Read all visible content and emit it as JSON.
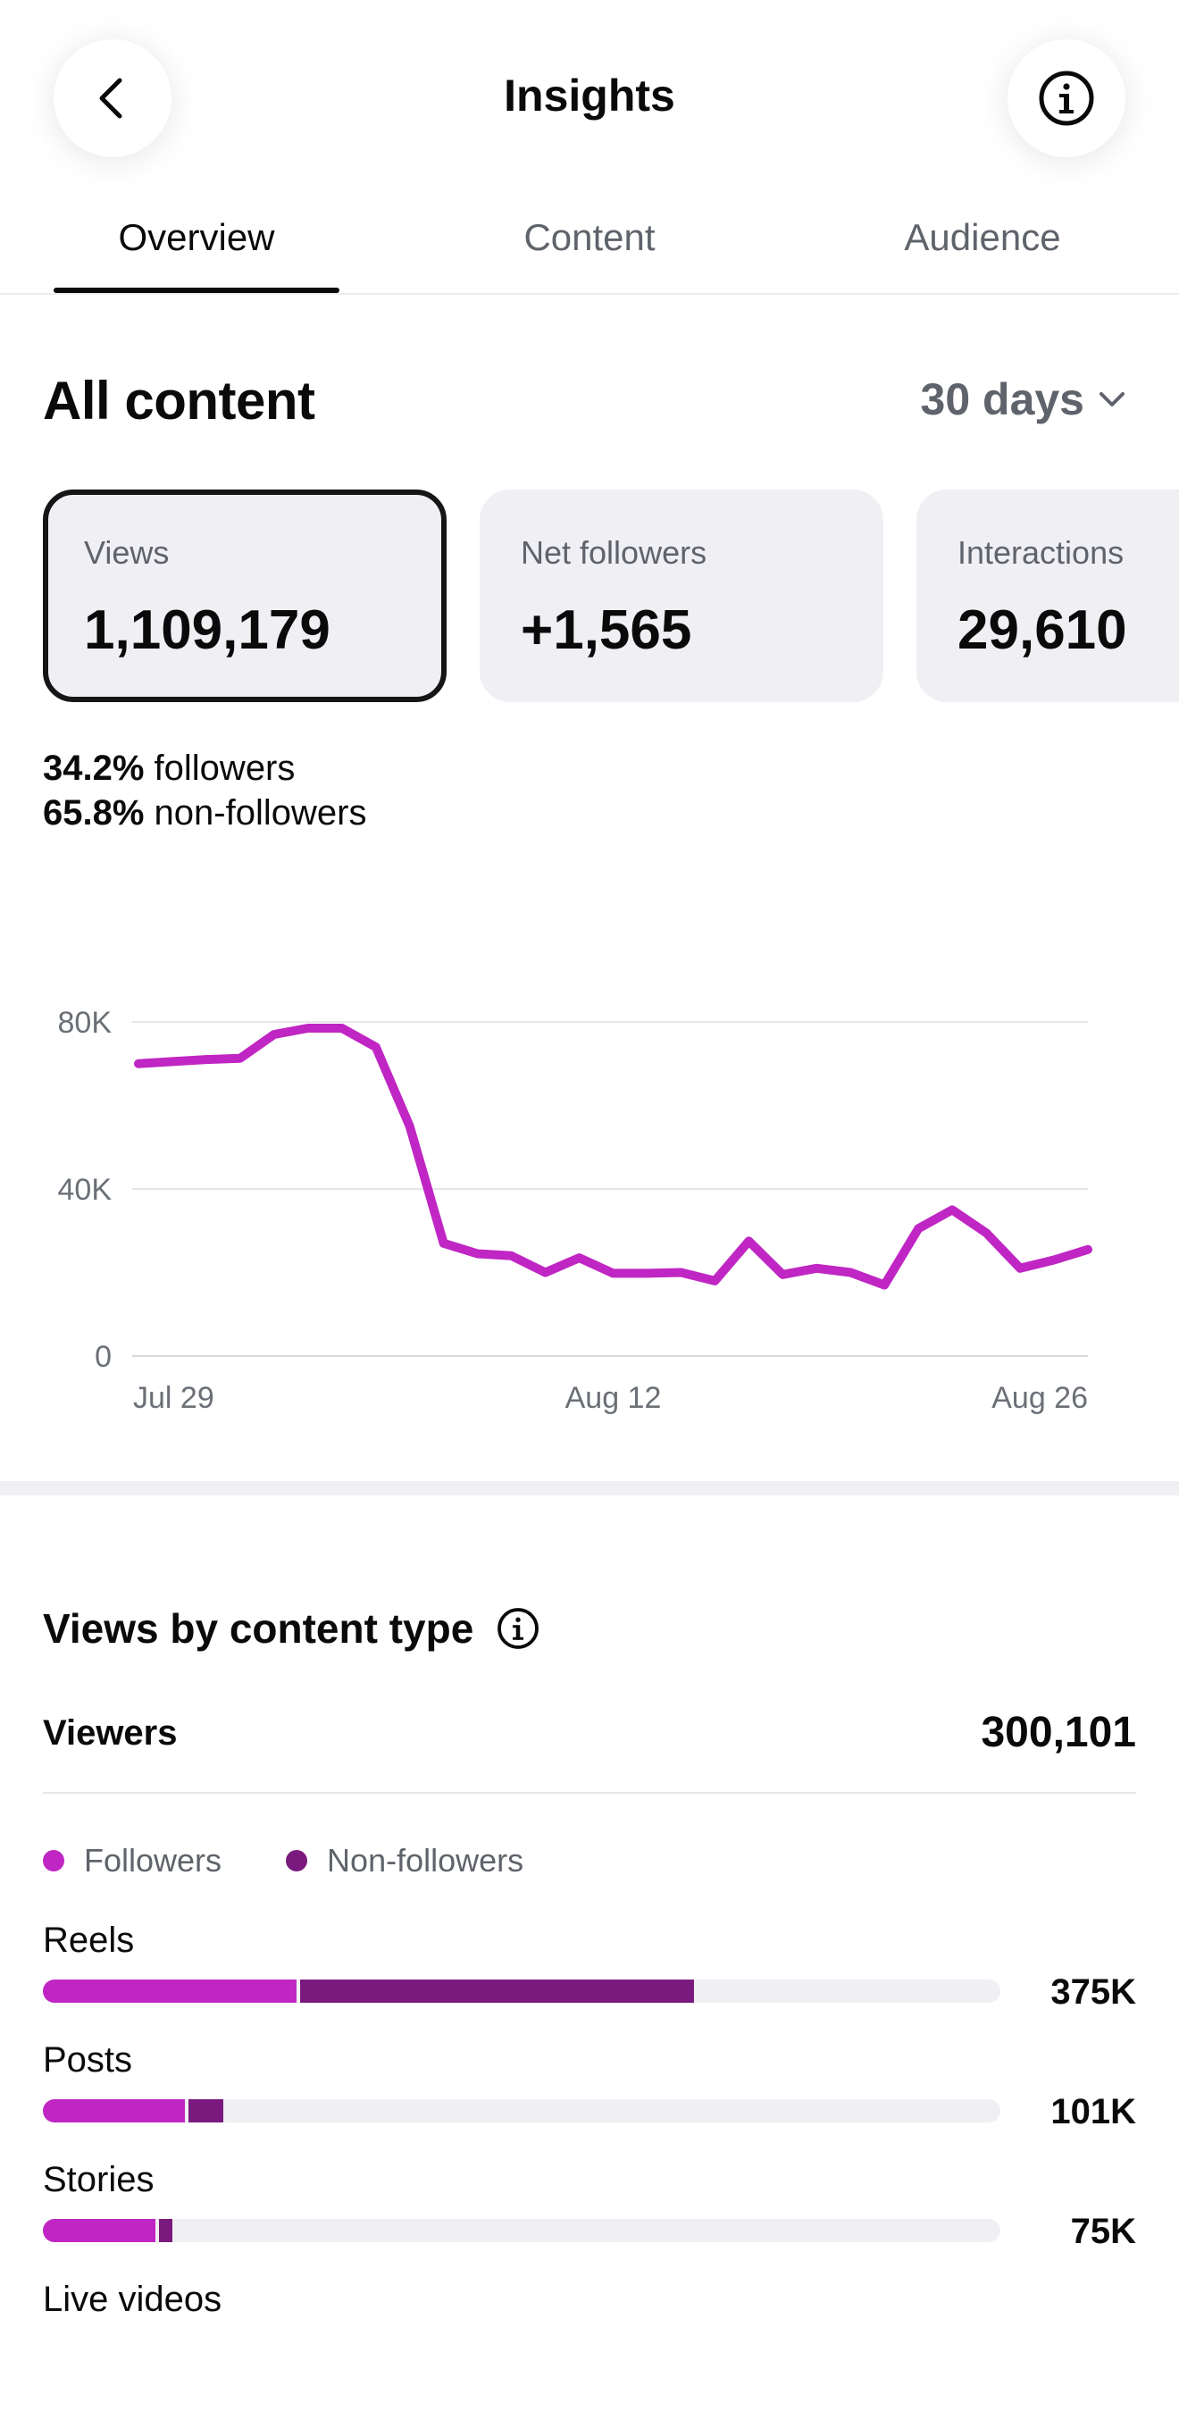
{
  "header": {
    "title": "Insights"
  },
  "tabs": [
    {
      "label": "Overview",
      "active": true
    },
    {
      "label": "Content",
      "active": false
    },
    {
      "label": "Audience",
      "active": false
    }
  ],
  "section": {
    "title": "All content",
    "range": "30 days"
  },
  "metrics": [
    {
      "label": "Views",
      "value": "1,109,179",
      "selected": true
    },
    {
      "label": "Net followers",
      "value": "+1,565",
      "selected": false
    },
    {
      "label": "Interactions",
      "value": "29,610",
      "selected": false
    }
  ],
  "split": {
    "followers_pct": "34.2%",
    "followers_text": "followers",
    "nonfollowers_pct": "65.8%",
    "nonfollowers_text": "non-followers"
  },
  "chart_data": {
    "type": "line",
    "x_tick_labels": [
      "Jul 29",
      "Aug 12",
      "Aug 26"
    ],
    "y_tick_labels": [
      "80K",
      "40K",
      "0"
    ],
    "ylim": [
      0,
      80000
    ],
    "grid": true,
    "color": "#c026c4",
    "series": [
      {
        "values": [
          70000,
          70500,
          71000,
          71300,
          77000,
          78500,
          78500,
          74000,
          55000,
          27000,
          24500,
          24000,
          20000,
          23500,
          19800,
          19800,
          20000,
          18000,
          27500,
          19500,
          21000,
          20000,
          17000,
          30500,
          35000,
          29500,
          21000,
          23000,
          25500
        ]
      }
    ]
  },
  "views_by_type": {
    "title": "Views by content type",
    "viewers_label": "Viewers",
    "viewers_value": "300,101",
    "legend": [
      {
        "label": "Followers",
        "color": "#c026c4"
      },
      {
        "label": "Non-followers",
        "color": "#7b1a7e"
      }
    ],
    "items": [
      {
        "label": "Reels",
        "value": "375K",
        "followers_fraction": 0.265,
        "nonfollowers_fraction": 0.415
      },
      {
        "label": "Posts",
        "value": "101K",
        "followers_fraction": 0.148,
        "nonfollowers_fraction": 0.04
      },
      {
        "label": "Stories",
        "value": "75K",
        "followers_fraction": 0.118,
        "nonfollowers_fraction": 0.017
      },
      {
        "label": "Live videos",
        "value": "",
        "followers_fraction": 0,
        "nonfollowers_fraction": 0
      }
    ]
  }
}
